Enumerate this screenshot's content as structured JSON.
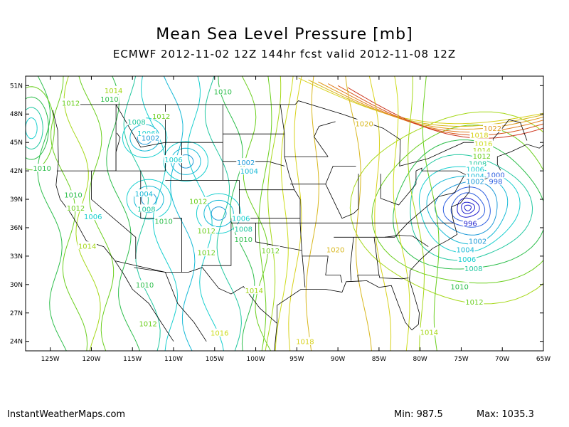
{
  "title": "Mean Sea Level Pressure [mb]",
  "subtitle": "ECMWF 2012-11-02 12Z 144hr fcst valid 2012-11-08 12Z",
  "footer": {
    "site": "InstantWeatherMaps.com",
    "min_label": "Min:",
    "min_value": "987.5",
    "max_label": "Max:",
    "max_value": "1035.3"
  },
  "map": {
    "lon_range": [
      -128,
      -65
    ],
    "lat_range": [
      23,
      52
    ],
    "lat_ticks": [
      "51N",
      "48N",
      "45N",
      "42N",
      "39N",
      "36N",
      "33N",
      "30N",
      "27N",
      "24N"
    ],
    "lon_ticks": [
      "125W",
      "120W",
      "115W",
      "110W",
      "105W",
      "100W",
      "95W",
      "90W",
      "85W",
      "80W",
      "75W",
      "70W",
      "65W"
    ],
    "low_center": {
      "lon": -74.2,
      "lat": 38.1
    },
    "colors": {
      "c996": "#1c1ccd",
      "c1000": "#2e5fe0",
      "c1002": "#1e9ad8",
      "c1004": "#16b9d6",
      "c1006": "#18cfcf",
      "c1008": "#21c8a0",
      "c1010": "#2dbe4b",
      "c1012": "#6bcf1e",
      "c1014": "#a6d81a",
      "c1016": "#cddd1d",
      "c1018": "#d8d21d",
      "c1020": "#d8b71d",
      "c1022": "#e09a1d",
      "c1024": "#e07a1d",
      "c1026": "#d8561d",
      "c1028": "#cc341d"
    },
    "contour_labels": [
      {
        "text": "1014",
        "lon": -117.3,
        "lat": 50.5,
        "color": "#a6d81a"
      },
      {
        "text": "1010",
        "lon": -117.8,
        "lat": 49.6,
        "color": "#2dbe4b"
      },
      {
        "text": "1012",
        "lon": -122.5,
        "lat": 49.2,
        "color": "#6bcf1e"
      },
      {
        "text": "1010",
        "lon": -104.0,
        "lat": 50.4,
        "color": "#2dbe4b"
      },
      {
        "text": "1012",
        "lon": -111.5,
        "lat": 47.8,
        "color": "#6bcf1e"
      },
      {
        "text": "1008",
        "lon": -114.5,
        "lat": 47.2,
        "color": "#21c8a0"
      },
      {
        "text": "1006",
        "lon": -113.3,
        "lat": 46.0,
        "color": "#18cfcf"
      },
      {
        "text": "1002",
        "lon": -112.8,
        "lat": 45.5,
        "color": "#1e9ad8"
      },
      {
        "text": "1006",
        "lon": -110.0,
        "lat": 43.2,
        "color": "#18cfcf"
      },
      {
        "text": "1002",
        "lon": -101.2,
        "lat": 42.9,
        "color": "#1e9ad8"
      },
      {
        "text": "1004",
        "lon": -100.8,
        "lat": 42.0,
        "color": "#16b9d6"
      },
      {
        "text": "1010",
        "lon": -126.0,
        "lat": 42.3,
        "color": "#2dbe4b"
      },
      {
        "text": "1010",
        "lon": -122.2,
        "lat": 39.5,
        "color": "#2dbe4b"
      },
      {
        "text": "1004",
        "lon": -113.6,
        "lat": 39.6,
        "color": "#16b9d6"
      },
      {
        "text": "1012",
        "lon": -107.0,
        "lat": 38.8,
        "color": "#6bcf1e"
      },
      {
        "text": "1012",
        "lon": -121.9,
        "lat": 38.1,
        "color": "#6bcf1e"
      },
      {
        "text": "1008",
        "lon": -113.3,
        "lat": 38.0,
        "color": "#21c8a0"
      },
      {
        "text": "1006",
        "lon": -119.8,
        "lat": 37.2,
        "color": "#18cfcf"
      },
      {
        "text": "1010",
        "lon": -111.2,
        "lat": 36.7,
        "color": "#2dbe4b"
      },
      {
        "text": "1006",
        "lon": -101.8,
        "lat": 37.0,
        "color": "#18cfcf"
      },
      {
        "text": "1008",
        "lon": -101.5,
        "lat": 35.9,
        "color": "#21c8a0"
      },
      {
        "text": "1012",
        "lon": -106.0,
        "lat": 35.7,
        "color": "#6bcf1e"
      },
      {
        "text": "1010",
        "lon": -101.5,
        "lat": 34.8,
        "color": "#2dbe4b"
      },
      {
        "text": "1014",
        "lon": -120.5,
        "lat": 34.1,
        "color": "#a6d81a"
      },
      {
        "text": "1012",
        "lon": -106.0,
        "lat": 33.4,
        "color": "#6bcf1e"
      },
      {
        "text": "1012",
        "lon": -98.2,
        "lat": 33.6,
        "color": "#6bcf1e"
      },
      {
        "text": "1020",
        "lon": -90.3,
        "lat": 33.7,
        "color": "#d8b71d"
      },
      {
        "text": "1010",
        "lon": -113.5,
        "lat": 30.0,
        "color": "#2dbe4b"
      },
      {
        "text": "1014",
        "lon": -100.2,
        "lat": 29.4,
        "color": "#a6d81a"
      },
      {
        "text": "1012",
        "lon": -113.1,
        "lat": 25.9,
        "color": "#6bcf1e"
      },
      {
        "text": "1016",
        "lon": -104.4,
        "lat": 24.9,
        "color": "#cddd1d"
      },
      {
        "text": "1018",
        "lon": -94.0,
        "lat": 24.0,
        "color": "#d8d21d"
      },
      {
        "text": "1020",
        "lon": -86.8,
        "lat": 47.0,
        "color": "#d8b71d"
      },
      {
        "text": "1022",
        "lon": -71.2,
        "lat": 46.5,
        "color": "#e09a1d"
      },
      {
        "text": "1018",
        "lon": -72.8,
        "lat": 45.8,
        "color": "#d8d21d"
      },
      {
        "text": "1016",
        "lon": -72.3,
        "lat": 44.9,
        "color": "#cddd1d"
      },
      {
        "text": "1014",
        "lon": -72.5,
        "lat": 44.2,
        "color": "#a6d81a"
      },
      {
        "text": "1012",
        "lon": -72.5,
        "lat": 43.6,
        "color": "#6bcf1e"
      },
      {
        "text": "1008",
        "lon": -73.0,
        "lat": 42.8,
        "color": "#21c8a0"
      },
      {
        "text": "1006",
        "lon": -73.3,
        "lat": 42.2,
        "color": "#18cfcf"
      },
      {
        "text": "1004",
        "lon": -73.3,
        "lat": 41.5,
        "color": "#16b9d6"
      },
      {
        "text": "1002",
        "lon": -73.3,
        "lat": 40.9,
        "color": "#1e9ad8"
      },
      {
        "text": "1000",
        "lon": -70.8,
        "lat": 41.6,
        "color": "#2e5fe0"
      },
      {
        "text": "998",
        "lon": -70.8,
        "lat": 40.9,
        "color": "#2e5fe0"
      },
      {
        "text": "996",
        "lon": -73.9,
        "lat": 36.5,
        "color": "#1c1ccd"
      },
      {
        "text": "1002",
        "lon": -73.0,
        "lat": 34.6,
        "color": "#1e9ad8"
      },
      {
        "text": "1004",
        "lon": -74.5,
        "lat": 33.7,
        "color": "#16b9d6"
      },
      {
        "text": "1006",
        "lon": -74.3,
        "lat": 32.7,
        "color": "#18cfcf"
      },
      {
        "text": "1008",
        "lon": -73.5,
        "lat": 31.7,
        "color": "#21c8a0"
      },
      {
        "text": "1010",
        "lon": -75.2,
        "lat": 29.8,
        "color": "#2dbe4b"
      },
      {
        "text": "1012",
        "lon": -73.4,
        "lat": 28.2,
        "color": "#6bcf1e"
      },
      {
        "text": "1014",
        "lon": -78.9,
        "lat": 25.0,
        "color": "#a6d81a"
      }
    ]
  }
}
